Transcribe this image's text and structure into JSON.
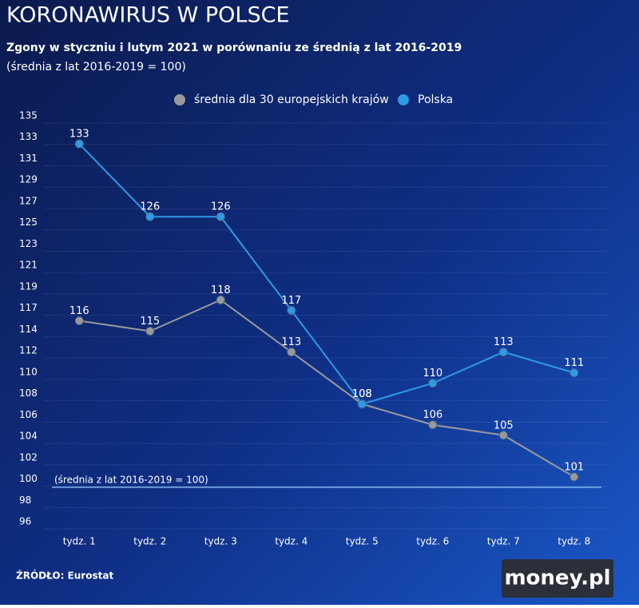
{
  "chart_data": {
    "type": "line",
    "title": "KORONAWIRUS W POLSCE",
    "subtitle": "Zgony w styczniu i lutym 2021 w porównaniu ze średnią z lat 2016-2019",
    "note": "(średnia z lat 2016-2019 = 100)",
    "categories": [
      "tydz. 1",
      "tydz. 2",
      "tydz. 3",
      "tydz. 4",
      "tydz. 5",
      "tydz. 6",
      "tydz. 7",
      "tydz. 8"
    ],
    "series": [
      {
        "name": "średnia dla 30 europejskich krajów",
        "color": "#9a9a9a",
        "values": [
          116,
          115,
          118,
          113,
          108,
          106,
          105,
          101
        ]
      },
      {
        "name": "Polska",
        "color": "#2e9be6",
        "values": [
          133,
          126,
          126,
          117,
          108,
          110,
          113,
          111
        ]
      }
    ],
    "reference": {
      "value": 100,
      "label": "(średnia z lat 2016-2019 = 100)",
      "color": "#7fb6ee"
    },
    "ylim": [
      96,
      135
    ],
    "yticks": [
      96,
      {
        "value": 98.05,
        "label": "98"
      },
      {
        "value": 100.11,
        "label": "100"
      },
      {
        "value": 102.16,
        "label": "102"
      },
      {
        "value": 104.21,
        "label": "104"
      },
      {
        "value": 106.26,
        "label": "106"
      },
      {
        "value": 108.32,
        "label": "108"
      },
      {
        "value": 110.37,
        "label": "110"
      },
      {
        "value": 112.42,
        "label": "112"
      },
      {
        "value": 114.47,
        "label": "114"
      },
      {
        "value": 116.53,
        "label": "117"
      },
      {
        "value": 118.58,
        "label": "119"
      },
      {
        "value": 120.63,
        "label": "121"
      },
      {
        "value": 122.68,
        "label": "123"
      },
      {
        "value": 124.74,
        "label": "125"
      },
      {
        "value": 126.79,
        "label": "127"
      },
      {
        "value": 128.84,
        "label": "129"
      },
      {
        "value": 130.89,
        "label": "131"
      },
      {
        "value": 132.95,
        "label": "133"
      },
      135
    ],
    "grid": true,
    "legend": "top",
    "source": "ŹRÓDŁO: Eurostat",
    "logo": "money.pl"
  }
}
